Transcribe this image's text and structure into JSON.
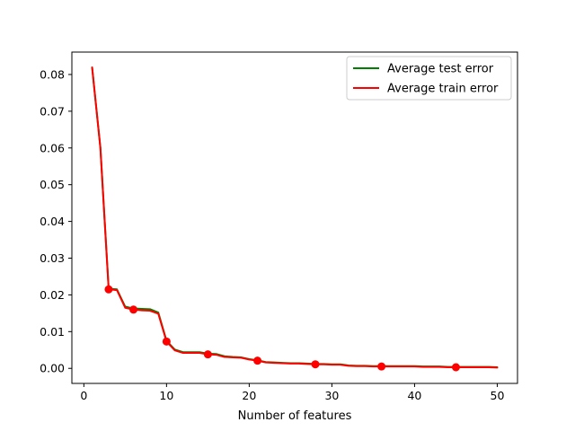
{
  "chart_data": {
    "type": "line",
    "title": "",
    "xlabel": "Number of features",
    "ylabel": "",
    "xlim": [
      -1.45,
      52.45
    ],
    "ylim": [
      -0.0041,
      0.0861
    ],
    "xticks": [
      0,
      10,
      20,
      30,
      40,
      50
    ],
    "xtick_labels": [
      "0",
      "10",
      "20",
      "30",
      "40",
      "50"
    ],
    "yticks": [
      0.0,
      0.01,
      0.02,
      0.03,
      0.04,
      0.05,
      0.06,
      0.07,
      0.08
    ],
    "ytick_labels": [
      "0.00",
      "0.01",
      "0.02",
      "0.03",
      "0.04",
      "0.05",
      "0.06",
      "0.07",
      "0.08"
    ],
    "grid": false,
    "legend_position": "upper right",
    "x": [
      1,
      2,
      3,
      4,
      5,
      6,
      7,
      8,
      9,
      10,
      11,
      12,
      13,
      14,
      15,
      16,
      17,
      18,
      19,
      20,
      21,
      22,
      23,
      24,
      25,
      26,
      27,
      28,
      29,
      30,
      31,
      32,
      33,
      34,
      35,
      36,
      37,
      38,
      39,
      40,
      41,
      42,
      43,
      44,
      45,
      46,
      47,
      48,
      49,
      50
    ],
    "series": [
      {
        "name": "Average test error",
        "color": "#008000",
        "values": [
          0.0819,
          0.06,
          0.0217,
          0.0215,
          0.0168,
          0.0163,
          0.0162,
          0.0161,
          0.0152,
          0.0075,
          0.0051,
          0.0044,
          0.0044,
          0.0044,
          0.004,
          0.0039,
          0.0033,
          0.0031,
          0.003,
          0.0025,
          0.0022,
          0.0017,
          0.0016,
          0.0015,
          0.0014,
          0.0014,
          0.0013,
          0.0012,
          0.0012,
          0.0011,
          0.0011,
          0.0008,
          0.0007,
          0.0007,
          0.0006,
          0.0006,
          0.0006,
          0.0006,
          0.0006,
          0.0006,
          0.0005,
          0.0005,
          0.0005,
          0.0004,
          0.0004,
          0.0004,
          0.0004,
          0.0004,
          0.0004,
          0.0003
        ]
      },
      {
        "name": "Average train error",
        "color": "#ff0000",
        "values": [
          0.0819,
          0.06,
          0.0215,
          0.0213,
          0.0165,
          0.016,
          0.0158,
          0.0157,
          0.0149,
          0.0073,
          0.0049,
          0.0042,
          0.0042,
          0.0042,
          0.0038,
          0.0037,
          0.0031,
          0.003,
          0.0029,
          0.0024,
          0.0021,
          0.0016,
          0.0015,
          0.0014,
          0.0013,
          0.0013,
          0.0012,
          0.0011,
          0.0011,
          0.001,
          0.001,
          0.0007,
          0.0006,
          0.0006,
          0.0005,
          0.0005,
          0.0005,
          0.0005,
          0.0005,
          0.0005,
          0.0004,
          0.0004,
          0.0004,
          0.0003,
          0.0003,
          0.0003,
          0.0003,
          0.0003,
          0.0003,
          0.0002
        ]
      }
    ],
    "markers": {
      "color": "#ff0000",
      "x": [
        3,
        6,
        10,
        15,
        21,
        28,
        36,
        45
      ],
      "y": [
        0.0215,
        0.016,
        0.0073,
        0.0038,
        0.0021,
        0.0011,
        0.0005,
        0.0003
      ]
    }
  }
}
